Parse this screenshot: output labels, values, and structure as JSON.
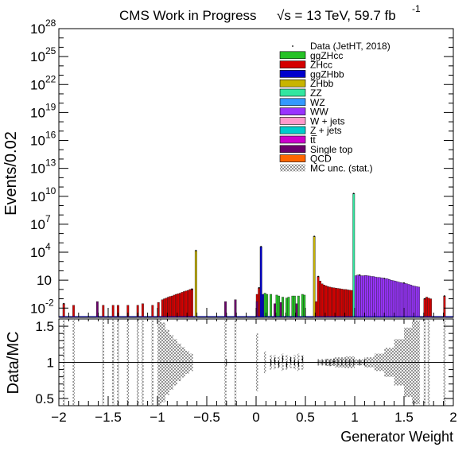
{
  "header": {
    "title_left": "CMS Work in Progress",
    "title_right": "√s = 13 TeV, 59.7 fb",
    "title_sup": "-1"
  },
  "chart_data": {
    "type": "bar",
    "xlabel": "Generator Weight",
    "ylabel_top": "Events/0.02",
    "ylabel_bottom": "Data/MC",
    "xlim": [
      -2,
      2
    ],
    "top_yscale": "log",
    "top_ylim": [
      0.001,
      1e+28
    ],
    "bottom_ylim": [
      0.4,
      1.6
    ],
    "x_ticks": [
      "−2",
      "−1.5",
      "−1",
      "−0.5",
      "0",
      "0.5",
      "1",
      "1.5",
      "2"
    ],
    "top_ticks": [
      {
        "base": "10",
        "exp": "28",
        "v": 1e+28
      },
      {
        "base": "10",
        "exp": "25",
        "v": 1e+25
      },
      {
        "base": "10",
        "exp": "22",
        "v": 1e+22
      },
      {
        "base": "10",
        "exp": "19",
        "v": 1e+19
      },
      {
        "base": "10",
        "exp": "16",
        "v": 1e+16
      },
      {
        "base": "10",
        "exp": "13",
        "v": 10000000000000.0
      },
      {
        "base": "10",
        "exp": "10",
        "v": 10000000000.0
      },
      {
        "base": "10",
        "exp": "7",
        "v": 10000000.0
      },
      {
        "base": "10",
        "exp": "4",
        "v": 10000.0
      },
      {
        "base": "10",
        "exp": "",
        "v": 10
      },
      {
        "base": "10",
        "exp": "-2",
        "v": 0.01
      }
    ],
    "bottom_ticks": [
      "1.5",
      "1",
      "0.5"
    ],
    "legend_position": "top-right",
    "legend": [
      {
        "name": "Data (JetHT, 2018)",
        "style": "marker",
        "color": "#000000"
      },
      {
        "name": "ggZHcc",
        "style": "box",
        "color": "#26c226"
      },
      {
        "name": "ZHcc",
        "style": "box",
        "color": "#d40000"
      },
      {
        "name": "ggZHbb",
        "style": "box",
        "color": "#0000cc"
      },
      {
        "name": "ZHbb",
        "style": "box",
        "color": "#c8b400"
      },
      {
        "name": "ZZ",
        "style": "box",
        "color": "#33e6a0"
      },
      {
        "name": "WZ",
        "style": "box",
        "color": "#3399ff"
      },
      {
        "name": "WW",
        "style": "box",
        "color": "#9933ff"
      },
      {
        "name": "W + jets",
        "style": "box",
        "color": "#ff99cc"
      },
      {
        "name": "Z + jets",
        "style": "box",
        "color": "#00cccc"
      },
      {
        "name": "tt̅",
        "style": "box",
        "color": "#cc00cc"
      },
      {
        "name": "Single top",
        "style": "box",
        "color": "#6b006b"
      },
      {
        "name": "QCD",
        "style": "box",
        "color": "#ff6600"
      },
      {
        "name": "MC unc. (stat.)",
        "style": "hatch",
        "color": "#555555"
      }
    ],
    "series": [
      {
        "name": "ZHcc",
        "color": "#d40000",
        "points": [
          [
            -1.95,
            0.03
          ],
          [
            -1.85,
            0.02
          ],
          [
            -1.55,
            0.02
          ],
          [
            -1.45,
            0.02
          ],
          [
            -1.4,
            0.02
          ],
          [
            -1.3,
            0.02
          ],
          [
            -1.2,
            0.02
          ],
          [
            -1.15,
            0.03
          ],
          [
            -1.05,
            0.02
          ],
          [
            -0.99,
            0.04
          ],
          [
            -0.95,
            0.08
          ],
          [
            -0.93,
            0.1
          ],
          [
            -0.91,
            0.12
          ],
          [
            -0.89,
            0.15
          ],
          [
            -0.87,
            0.18
          ],
          [
            -0.85,
            0.2
          ],
          [
            -0.83,
            0.25
          ],
          [
            -0.81,
            0.3
          ],
          [
            -0.79,
            0.35
          ],
          [
            -0.77,
            0.4
          ],
          [
            -0.75,
            0.5
          ],
          [
            -0.73,
            0.6
          ],
          [
            -0.71,
            0.7
          ],
          [
            -0.69,
            0.8
          ],
          [
            -0.67,
            1.0
          ],
          [
            -0.65,
            1.2
          ],
          [
            0.01,
            0.3
          ],
          [
            0.03,
            1.5
          ],
          [
            0.61,
            0.05
          ],
          [
            0.63,
            25
          ],
          [
            0.65,
            8
          ],
          [
            0.67,
            4
          ],
          [
            0.69,
            3
          ],
          [
            0.71,
            2.5
          ],
          [
            0.73,
            2
          ],
          [
            0.75,
            1.8
          ],
          [
            0.77,
            1.6
          ],
          [
            0.79,
            1.5
          ],
          [
            0.81,
            1.4
          ],
          [
            0.83,
            1.3
          ],
          [
            0.85,
            1.2
          ],
          [
            0.87,
            1.1
          ],
          [
            0.89,
            1.0
          ],
          [
            0.91,
            1.0
          ],
          [
            0.93,
            0.9
          ],
          [
            0.95,
            0.85
          ],
          [
            0.97,
            0.8
          ],
          [
            0.99,
            0.8
          ],
          [
            1.71,
            0.1
          ],
          [
            1.73,
            0.15
          ],
          [
            1.75,
            0.12
          ],
          [
            1.77,
            0.1
          ],
          [
            1.91,
            0.2
          ]
        ]
      },
      {
        "name": "ZHbb",
        "color": "#c8b400",
        "points": [
          [
            -0.61,
            15000
          ],
          [
            0.59,
            500000
          ]
        ]
      },
      {
        "name": "ggZHbb",
        "color": "#0000cc",
        "points": [
          [
            0.05,
            40000
          ],
          [
            0.07,
            0.3
          ]
        ]
      },
      {
        "name": "ggZHcc",
        "color": "#26c226",
        "points": [
          [
            0.09,
            0.4
          ],
          [
            0.11,
            0.3
          ],
          [
            0.15,
            0.3
          ],
          [
            0.21,
            0.25
          ],
          [
            0.23,
            0.2
          ],
          [
            0.27,
            0.15
          ],
          [
            0.31,
            0.12
          ],
          [
            0.33,
            0.15
          ],
          [
            0.37,
            0.2
          ],
          [
            0.39,
            0.2
          ],
          [
            0.43,
            0.2
          ],
          [
            0.47,
            0.3
          ],
          [
            0.49,
            0.25
          ]
        ]
      },
      {
        "name": "WW",
        "color": "#9933ff",
        "points": [
          [
            1.01,
            30
          ],
          [
            1.03,
            35
          ],
          [
            1.05,
            35
          ],
          [
            1.07,
            30
          ],
          [
            1.09,
            30
          ],
          [
            1.11,
            32
          ],
          [
            1.13,
            30
          ],
          [
            1.15,
            28
          ],
          [
            1.17,
            25
          ],
          [
            1.19,
            25
          ],
          [
            1.21,
            22
          ],
          [
            1.23,
            20
          ],
          [
            1.25,
            20
          ],
          [
            1.27,
            18
          ],
          [
            1.29,
            16
          ],
          [
            1.31,
            15
          ],
          [
            1.33,
            14
          ],
          [
            1.35,
            12
          ],
          [
            1.37,
            10
          ],
          [
            1.39,
            9
          ],
          [
            1.41,
            8
          ],
          [
            1.43,
            7
          ],
          [
            1.45,
            6
          ],
          [
            1.47,
            5.5
          ],
          [
            1.49,
            5
          ],
          [
            1.51,
            4.5
          ],
          [
            1.53,
            4
          ],
          [
            1.55,
            3.5
          ],
          [
            1.57,
            3
          ],
          [
            1.59,
            2.5
          ],
          [
            1.61,
            2.2
          ],
          [
            1.63,
            2
          ],
          [
            1.65,
            1.8
          ]
        ]
      },
      {
        "name": "ZZ",
        "color": "#33e6a0",
        "points": [
          [
            0.99,
            20000000000.0
          ]
        ]
      },
      {
        "name": "Single top",
        "color": "#6b006b",
        "points": [
          [
            -1.61,
            0.05
          ],
          [
            -0.31,
            0.05
          ],
          [
            -0.21,
            0.08
          ],
          [
            0.01,
            0.05
          ],
          [
            0.19,
            0.03
          ],
          [
            0.25,
            0.04
          ],
          [
            0.41,
            0.03
          ]
        ]
      }
    ],
    "data_points": [
      [
        -1.95,
        0.03
      ],
      [
        -0.65,
        1.0
      ],
      [
        -0.61,
        15000
      ],
      [
        0.03,
        1.5
      ],
      [
        0.05,
        40000
      ],
      [
        0.59,
        500000
      ],
      [
        0.63,
        25
      ],
      [
        0.99,
        20000000000.0
      ],
      [
        1.05,
        35
      ],
      [
        1.3,
        15
      ],
      [
        1.5,
        5
      ],
      [
        1.71,
        0.1
      ],
      [
        1.91,
        0.2
      ]
    ],
    "ratio_points": [
      [
        -0.3,
        1.0
      ],
      [
        0.15,
        1.0
      ],
      [
        0.19,
        1.02
      ],
      [
        0.23,
        0.98
      ],
      [
        0.27,
        1.05
      ],
      [
        0.31,
        0.97
      ],
      [
        0.35,
        1.03
      ],
      [
        0.39,
        1.0
      ],
      [
        0.43,
        0.98
      ],
      [
        0.47,
        1.04
      ],
      [
        0.63,
        1.0
      ],
      [
        0.67,
        1.0
      ],
      [
        0.71,
        1.0
      ],
      [
        0.75,
        0.99
      ],
      [
        0.79,
        1.01
      ],
      [
        0.83,
        1.0
      ],
      [
        0.87,
        1.0
      ],
      [
        0.91,
        1.0
      ],
      [
        0.95,
        1.0
      ],
      [
        0.99,
        1.0
      ],
      [
        1.05,
        1.0
      ],
      [
        1.1,
        1.0
      ]
    ],
    "unc_band": [
      {
        "x0": -1.96,
        "x1": -1.94,
        "lo": 0.4,
        "hi": 1.6
      },
      {
        "x0": -1.86,
        "x1": -1.84,
        "lo": 0.4,
        "hi": 1.6
      },
      {
        "x0": -1.56,
        "x1": -1.54,
        "lo": 0.4,
        "hi": 1.6
      },
      {
        "x0": -1.46,
        "x1": -1.44,
        "lo": 0.4,
        "hi": 1.6
      },
      {
        "x0": -1.41,
        "x1": -1.39,
        "lo": 0.4,
        "hi": 1.6
      },
      {
        "x0": -1.31,
        "x1": -1.29,
        "lo": 0.4,
        "hi": 1.6
      },
      {
        "x0": -1.21,
        "x1": -1.19,
        "lo": 0.4,
        "hi": 1.6
      },
      {
        "x0": -1.16,
        "x1": -1.14,
        "lo": 0.4,
        "hi": 1.6
      },
      {
        "x0": -1.06,
        "x1": -1.04,
        "lo": 0.4,
        "hi": 1.6
      },
      {
        "x0": -1.0,
        "x1": -0.96,
        "lo": 0.4,
        "hi": 1.6
      },
      {
        "x0": -0.96,
        "x1": -0.92,
        "lo": 0.45,
        "hi": 1.55
      },
      {
        "x0": -0.92,
        "x1": -0.88,
        "lo": 0.55,
        "hi": 1.45
      },
      {
        "x0": -0.88,
        "x1": -0.84,
        "lo": 0.62,
        "hi": 1.38
      },
      {
        "x0": -0.84,
        "x1": -0.8,
        "lo": 0.68,
        "hi": 1.32
      },
      {
        "x0": -0.8,
        "x1": -0.76,
        "lo": 0.74,
        "hi": 1.26
      },
      {
        "x0": -0.76,
        "x1": -0.72,
        "lo": 0.79,
        "hi": 1.21
      },
      {
        "x0": -0.72,
        "x1": -0.68,
        "lo": 0.84,
        "hi": 1.16
      },
      {
        "x0": -0.68,
        "x1": -0.64,
        "lo": 0.88,
        "hi": 1.12
      },
      {
        "x0": -0.32,
        "x1": -0.3,
        "lo": 0.4,
        "hi": 1.6
      },
      {
        "x0": -0.22,
        "x1": -0.2,
        "lo": 0.4,
        "hi": 1.6
      },
      {
        "x0": 0.0,
        "x1": 0.02,
        "lo": 0.6,
        "hi": 1.4
      },
      {
        "x0": 0.08,
        "x1": 0.1,
        "lo": 0.85,
        "hi": 1.15
      },
      {
        "x0": 0.14,
        "x1": 0.16,
        "lo": 0.9,
        "hi": 1.1
      },
      {
        "x0": 0.18,
        "x1": 0.2,
        "lo": 0.9,
        "hi": 1.1
      },
      {
        "x0": 0.22,
        "x1": 0.24,
        "lo": 0.92,
        "hi": 1.08
      },
      {
        "x0": 0.26,
        "x1": 0.28,
        "lo": 0.88,
        "hi": 1.12
      },
      {
        "x0": 0.3,
        "x1": 0.32,
        "lo": 0.9,
        "hi": 1.1
      },
      {
        "x0": 0.34,
        "x1": 0.36,
        "lo": 0.92,
        "hi": 1.08
      },
      {
        "x0": 0.38,
        "x1": 0.4,
        "lo": 0.9,
        "hi": 1.1
      },
      {
        "x0": 0.42,
        "x1": 0.44,
        "lo": 0.88,
        "hi": 1.12
      },
      {
        "x0": 0.46,
        "x1": 0.48,
        "lo": 0.9,
        "hi": 1.1
      },
      {
        "x0": 0.64,
        "x1": 0.7,
        "lo": 0.97,
        "hi": 1.03
      },
      {
        "x0": 0.7,
        "x1": 0.8,
        "lo": 0.95,
        "hi": 1.05
      },
      {
        "x0": 0.8,
        "x1": 0.9,
        "lo": 0.93,
        "hi": 1.07
      },
      {
        "x0": 0.9,
        "x1": 1.0,
        "lo": 0.92,
        "hi": 1.08
      },
      {
        "x0": 1.0,
        "x1": 1.1,
        "lo": 0.96,
        "hi": 1.04
      },
      {
        "x0": 1.1,
        "x1": 1.2,
        "lo": 0.93,
        "hi": 1.07
      },
      {
        "x0": 1.2,
        "x1": 1.3,
        "lo": 0.88,
        "hi": 1.12
      },
      {
        "x0": 1.3,
        "x1": 1.4,
        "lo": 0.8,
        "hi": 1.2
      },
      {
        "x0": 1.4,
        "x1": 1.5,
        "lo": 0.68,
        "hi": 1.32
      },
      {
        "x0": 1.5,
        "x1": 1.58,
        "lo": 0.52,
        "hi": 1.48
      },
      {
        "x0": 1.58,
        "x1": 1.66,
        "lo": 0.42,
        "hi": 1.58
      },
      {
        "x0": 1.7,
        "x1": 1.72,
        "lo": 0.4,
        "hi": 1.6
      },
      {
        "x0": 1.74,
        "x1": 1.76,
        "lo": 0.4,
        "hi": 1.6
      },
      {
        "x0": 1.9,
        "x1": 1.92,
        "lo": 0.4,
        "hi": 1.6
      }
    ]
  }
}
